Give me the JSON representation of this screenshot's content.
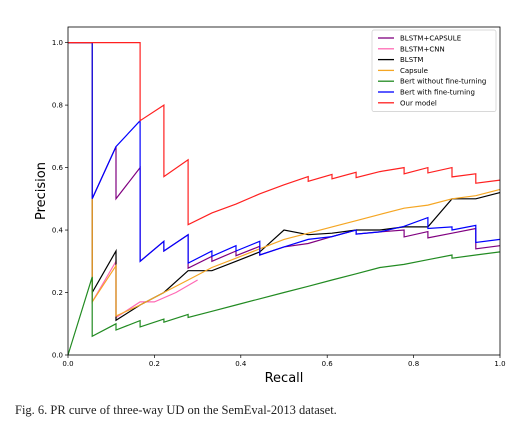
{
  "caption": "Fig. 6.    PR curve of three-way UD on the SemEval-2013 dataset.",
  "chart_data": {
    "type": "line",
    "title": "",
    "xlabel": "Recall",
    "ylabel": "Precision",
    "xlim": [
      0.0,
      1.0
    ],
    "ylim": [
      0.0,
      1.05
    ],
    "x_ticks": [
      0.0,
      0.2,
      0.4,
      0.6,
      0.8,
      1.0
    ],
    "x_tick_labels": [
      "0.0",
      "0.2",
      "0.4",
      "0.6",
      "0.8",
      "1.0"
    ],
    "y_ticks": [
      0.0,
      0.2,
      0.4,
      0.6,
      0.8,
      1.0
    ],
    "y_tick_labels": [
      "0.0",
      "0.2",
      "0.4",
      "0.6",
      "0.8",
      "1.0"
    ],
    "grid": false,
    "legend_position": "top-right",
    "series": [
      {
        "name": "BLSTM+CAPSULE",
        "color": "#800080",
        "points": [
          [
            0.0,
            1.0
          ],
          [
            0.056,
            1.0
          ],
          [
            0.056,
            0.5
          ],
          [
            0.111,
            0.667
          ],
          [
            0.111,
            0.5
          ],
          [
            0.167,
            0.6
          ],
          [
            0.167,
            0.3
          ],
          [
            0.222,
            0.364
          ],
          [
            0.222,
            0.333
          ],
          [
            0.278,
            0.385
          ],
          [
            0.278,
            0.278
          ],
          [
            0.333,
            0.316
          ],
          [
            0.333,
            0.3
          ],
          [
            0.389,
            0.333
          ],
          [
            0.389,
            0.318
          ],
          [
            0.444,
            0.348
          ],
          [
            0.444,
            0.32
          ],
          [
            0.5,
            0.346
          ],
          [
            0.556,
            0.357
          ],
          [
            0.611,
            0.379
          ],
          [
            0.667,
            0.4
          ],
          [
            0.667,
            0.387
          ],
          [
            0.722,
            0.394
          ],
          [
            0.778,
            0.4
          ],
          [
            0.778,
            0.378
          ],
          [
            0.833,
            0.395
          ],
          [
            0.833,
            0.375
          ],
          [
            0.889,
            0.39
          ],
          [
            0.944,
            0.405
          ],
          [
            0.944,
            0.34
          ],
          [
            1.0,
            0.35
          ]
        ]
      },
      {
        "name": "BLSTM+CNN",
        "color": "#ff69b4",
        "points": [
          [
            0.0,
            1.0
          ],
          [
            0.056,
            1.0
          ],
          [
            0.056,
            0.17
          ],
          [
            0.111,
            0.3
          ],
          [
            0.111,
            0.12
          ],
          [
            0.167,
            0.17
          ],
          [
            0.2,
            0.17
          ],
          [
            0.25,
            0.2
          ],
          [
            0.3,
            0.24
          ]
        ]
      },
      {
        "name": "BLSTM",
        "color": "#000000",
        "points": [
          [
            0.0,
            1.0
          ],
          [
            0.056,
            1.0
          ],
          [
            0.056,
            0.2
          ],
          [
            0.111,
            0.333
          ],
          [
            0.111,
            0.111
          ],
          [
            0.167,
            0.16
          ],
          [
            0.222,
            0.2
          ],
          [
            0.278,
            0.27
          ],
          [
            0.333,
            0.27
          ],
          [
            0.389,
            0.3
          ],
          [
            0.444,
            0.33
          ],
          [
            0.5,
            0.4
          ],
          [
            0.556,
            0.385
          ],
          [
            0.611,
            0.39
          ],
          [
            0.667,
            0.4
          ],
          [
            0.722,
            0.4
          ],
          [
            0.778,
            0.41
          ],
          [
            0.833,
            0.41
          ],
          [
            0.889,
            0.5
          ],
          [
            0.944,
            0.5
          ],
          [
            1.0,
            0.52
          ]
        ]
      },
      {
        "name": "Capsule",
        "color": "#f5a623",
        "points": [
          [
            0.0,
            1.0
          ],
          [
            0.056,
            1.0
          ],
          [
            0.056,
            0.5
          ],
          [
            0.056,
            0.17
          ],
          [
            0.111,
            0.286
          ],
          [
            0.111,
            0.125
          ],
          [
            0.167,
            0.16
          ],
          [
            0.222,
            0.2
          ],
          [
            0.278,
            0.24
          ],
          [
            0.333,
            0.28
          ],
          [
            0.389,
            0.31
          ],
          [
            0.444,
            0.34
          ],
          [
            0.5,
            0.37
          ],
          [
            0.556,
            0.39
          ],
          [
            0.611,
            0.41
          ],
          [
            0.667,
            0.43
          ],
          [
            0.722,
            0.45
          ],
          [
            0.778,
            0.47
          ],
          [
            0.833,
            0.48
          ],
          [
            0.889,
            0.5
          ],
          [
            0.944,
            0.51
          ],
          [
            1.0,
            0.53
          ]
        ]
      },
      {
        "name": "Bert without fine-turning",
        "color": "#228b22",
        "points": [
          [
            0.0,
            0.0
          ],
          [
            0.056,
            0.25
          ],
          [
            0.056,
            0.06
          ],
          [
            0.111,
            0.1
          ],
          [
            0.111,
            0.08
          ],
          [
            0.167,
            0.11
          ],
          [
            0.167,
            0.09
          ],
          [
            0.222,
            0.115
          ],
          [
            0.222,
            0.105
          ],
          [
            0.278,
            0.13
          ],
          [
            0.278,
            0.12
          ],
          [
            0.333,
            0.14
          ],
          [
            0.389,
            0.16
          ],
          [
            0.444,
            0.18
          ],
          [
            0.5,
            0.2
          ],
          [
            0.556,
            0.22
          ],
          [
            0.611,
            0.24
          ],
          [
            0.667,
            0.26
          ],
          [
            0.722,
            0.28
          ],
          [
            0.778,
            0.29
          ],
          [
            0.833,
            0.305
          ],
          [
            0.889,
            0.32
          ],
          [
            0.889,
            0.31
          ],
          [
            0.944,
            0.32
          ],
          [
            1.0,
            0.33
          ]
        ]
      },
      {
        "name": "Bert with fine-turning",
        "color": "#0000ff",
        "points": [
          [
            0.0,
            1.0
          ],
          [
            0.056,
            1.0
          ],
          [
            0.056,
            0.5
          ],
          [
            0.111,
            0.667
          ],
          [
            0.167,
            0.75
          ],
          [
            0.167,
            0.3
          ],
          [
            0.222,
            0.364
          ],
          [
            0.222,
            0.333
          ],
          [
            0.278,
            0.385
          ],
          [
            0.278,
            0.294
          ],
          [
            0.333,
            0.333
          ],
          [
            0.333,
            0.316
          ],
          [
            0.389,
            0.35
          ],
          [
            0.389,
            0.333
          ],
          [
            0.444,
            0.364
          ],
          [
            0.444,
            0.32
          ],
          [
            0.5,
            0.346
          ],
          [
            0.556,
            0.37
          ],
          [
            0.611,
            0.379
          ],
          [
            0.667,
            0.4
          ],
          [
            0.667,
            0.387
          ],
          [
            0.722,
            0.394
          ],
          [
            0.778,
            0.412
          ],
          [
            0.833,
            0.44
          ],
          [
            0.833,
            0.405
          ],
          [
            0.889,
            0.41
          ],
          [
            0.889,
            0.4
          ],
          [
            0.944,
            0.415
          ],
          [
            0.944,
            0.36
          ],
          [
            1.0,
            0.37
          ]
        ]
      },
      {
        "name": "Our model",
        "color": "#ff2020",
        "points": [
          [
            0.0,
            1.0
          ],
          [
            0.167,
            1.0
          ],
          [
            0.167,
            0.75
          ],
          [
            0.222,
            0.8
          ],
          [
            0.222,
            0.571
          ],
          [
            0.278,
            0.625
          ],
          [
            0.278,
            0.417
          ],
          [
            0.333,
            0.455
          ],
          [
            0.389,
            0.483
          ],
          [
            0.444,
            0.516
          ],
          [
            0.5,
            0.545
          ],
          [
            0.556,
            0.571
          ],
          [
            0.556,
            0.556
          ],
          [
            0.611,
            0.578
          ],
          [
            0.611,
            0.564
          ],
          [
            0.667,
            0.585
          ],
          [
            0.667,
            0.568
          ],
          [
            0.722,
            0.587
          ],
          [
            0.778,
            0.6
          ],
          [
            0.778,
            0.58
          ],
          [
            0.833,
            0.6
          ],
          [
            0.833,
            0.583
          ],
          [
            0.889,
            0.6
          ],
          [
            0.889,
            0.57
          ],
          [
            0.944,
            0.58
          ],
          [
            0.944,
            0.55
          ],
          [
            1.0,
            0.56
          ]
        ]
      }
    ]
  }
}
